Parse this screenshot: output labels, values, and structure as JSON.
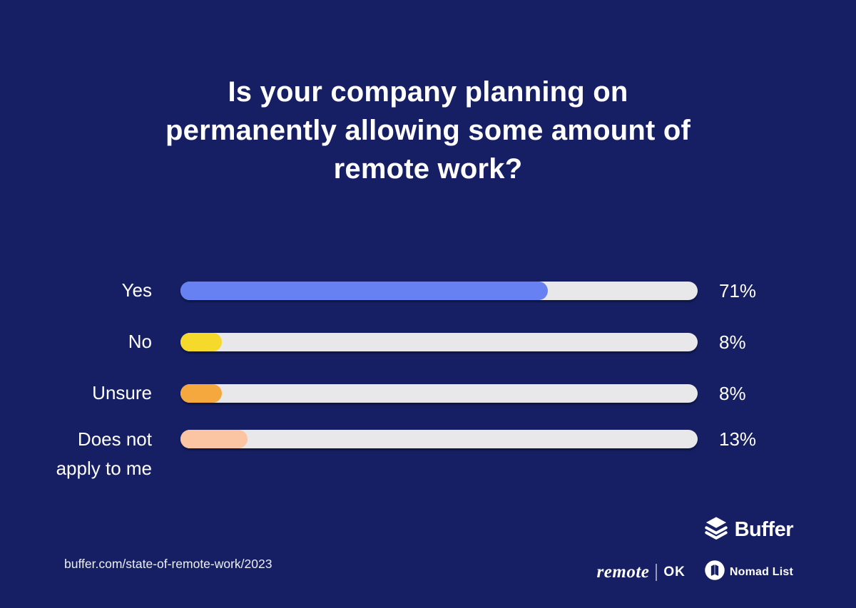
{
  "colors": {
    "background": "#161F63",
    "text": "#FFFFFF",
    "track": "#E8E7E9",
    "bar_yes": "#6781F2",
    "bar_no": "#F5D92B",
    "bar_unsure": "#F5A83E",
    "bar_does_not_apply": "#FBC5A3"
  },
  "title": {
    "lines": [
      "Is your company planning on",
      "permanently allowing some amount of",
      "remote work?"
    ]
  },
  "chart_data": {
    "type": "bar",
    "orientation": "horizontal",
    "title": "Is your company planning on permanently allowing some amount of remote work?",
    "categories": [
      "Yes",
      "No",
      "Unsure",
      "Does not apply to me"
    ],
    "values": [
      71,
      8,
      8,
      13
    ],
    "value_labels": [
      "71%",
      "8%",
      "8%",
      "13%"
    ],
    "bar_colors": [
      "#6781F2",
      "#F5D92B",
      "#F5A83E",
      "#FBC5A3"
    ],
    "track_color": "#E8E7E9",
    "xlim": [
      0,
      100
    ],
    "grid": false,
    "legend": false
  },
  "footer": {
    "source_url": "buffer.com/state-of-remote-work/2023",
    "brands": {
      "buffer": {
        "name": "Buffer"
      },
      "remoteok": {
        "script": "remote",
        "suffix": "OK"
      },
      "nomadlist": {
        "name": "Nomad List"
      }
    }
  }
}
